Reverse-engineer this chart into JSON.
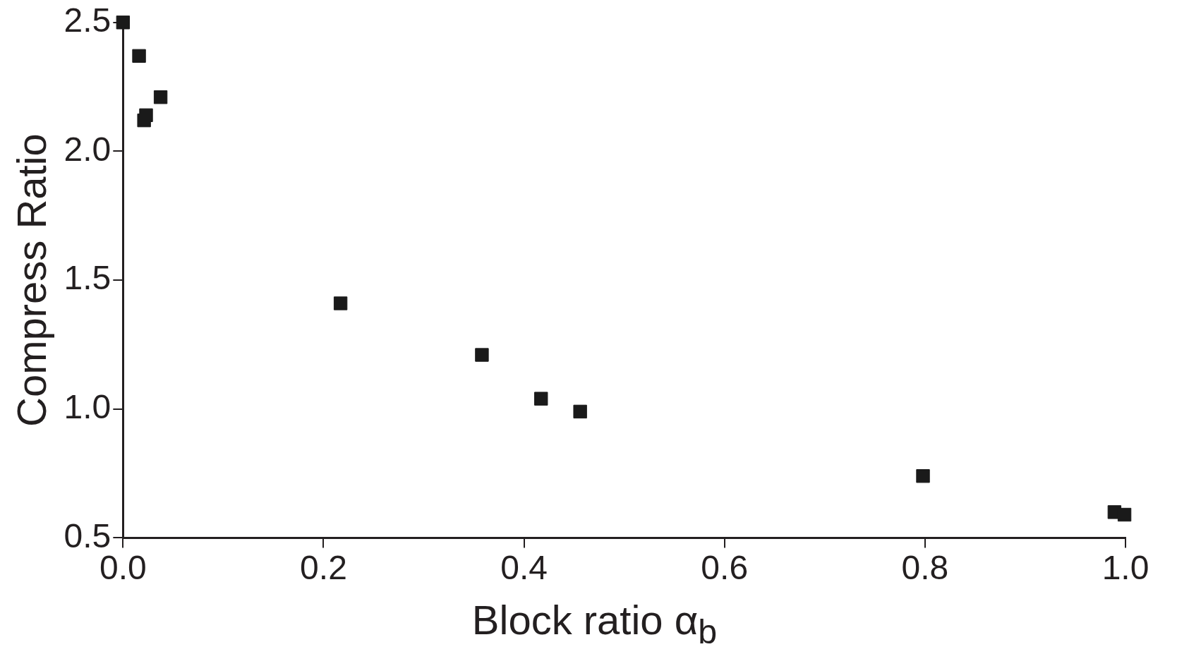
{
  "chart_data": {
    "type": "scatter",
    "xlabel": "Block ratio α$_{b}$",
    "ylabel": "Compress Ratio",
    "x": [
      0,
      0.016,
      0.0375,
      0.021,
      0.023,
      0.217,
      0.358,
      0.417,
      0.456,
      0.798,
      0.989,
      0.999
    ],
    "series": [
      {
        "color": "#1a1a1a",
        "values": [
          2.5,
          2.37,
          2.21,
          2.12,
          2.14,
          1.41,
          1.21,
          1.04,
          0.99,
          0.74,
          0.6,
          0.59
        ]
      }
    ],
    "xlim": [
      0,
      1
    ],
    "ylim": [
      0.5,
      2.5
    ],
    "xticks": [
      {
        "value": 0,
        "label": "0.0"
      },
      {
        "value": 0.2,
        "label": "0.2"
      },
      {
        "value": 0.4,
        "label": "0.4"
      },
      {
        "value": 0.6,
        "label": "0.6"
      },
      {
        "value": 0.8,
        "label": "0.8"
      },
      {
        "value": 1,
        "label": "1.0"
      }
    ],
    "yticks": [
      {
        "value": 0.5,
        "label": "0.5"
      },
      {
        "value": 1,
        "label": "1.0"
      },
      {
        "value": 1.5,
        "label": "1.5"
      },
      {
        "value": 2,
        "label": "2.0"
      },
      {
        "value": 2.5,
        "label": "2.5"
      }
    ],
    "grid": false,
    "legend": false,
    "marker": "square"
  }
}
